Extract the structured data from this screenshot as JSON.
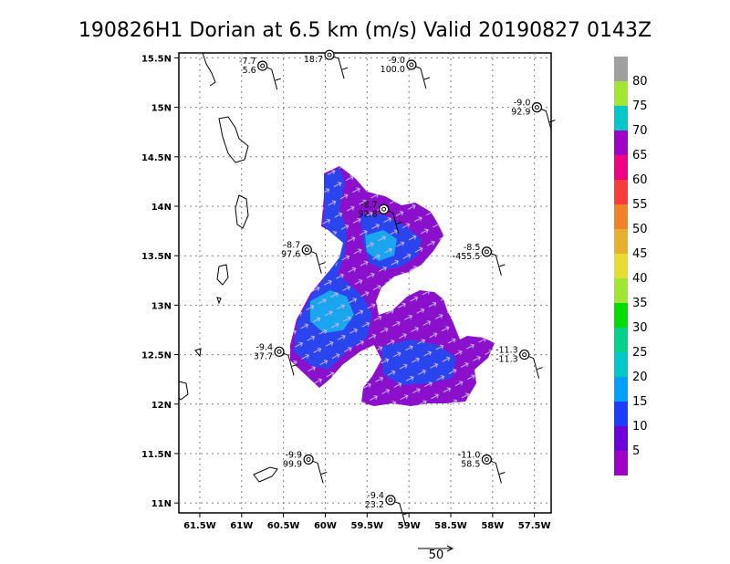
{
  "chart_data": {
    "type": "heatmap",
    "title": "190826H1 Dorian at 6.5 km (m/s) Valid 20190827 0143Z",
    "xlim": [
      -61.75,
      -57.3
    ],
    "ylim": [
      10.9,
      15.55
    ],
    "x_ticks": [
      {
        "value": -61.5,
        "label": "61.5W"
      },
      {
        "value": -61.0,
        "label": "61W"
      },
      {
        "value": -60.5,
        "label": "60.5W"
      },
      {
        "value": -60.0,
        "label": "60W"
      },
      {
        "value": -59.5,
        "label": "59.5W"
      },
      {
        "value": -59.0,
        "label": "59W"
      },
      {
        "value": -58.5,
        "label": "58.5W"
      },
      {
        "value": -58.0,
        "label": "58W"
      },
      {
        "value": -57.5,
        "label": "57.5W"
      }
    ],
    "y_ticks": [
      {
        "value": 15.5,
        "label": "15.5N"
      },
      {
        "value": 15.0,
        "label": "15N"
      },
      {
        "value": 14.5,
        "label": "14.5N"
      },
      {
        "value": 14.0,
        "label": "14N"
      },
      {
        "value": 13.5,
        "label": "13.5N"
      },
      {
        "value": 13.0,
        "label": "13N"
      },
      {
        "value": 12.5,
        "label": "12.5N"
      },
      {
        "value": 12.0,
        "label": "12N"
      },
      {
        "value": 11.5,
        "label": "11.5N"
      },
      {
        "value": 11.0,
        "label": "11N"
      }
    ],
    "grid": true,
    "colorbar": {
      "labels": [
        "5",
        "10",
        "15",
        "20",
        "25",
        "30",
        "35",
        "40",
        "45",
        "50",
        "55",
        "60",
        "65",
        "70",
        "75",
        "80"
      ],
      "colors": [
        "#a000c8",
        "#6e00dc",
        "#1e3cff",
        "#00a0ff",
        "#00c8c8",
        "#00d28c",
        "#00dc00",
        "#a0e632",
        "#e6dc32",
        "#e6af2d",
        "#f08228",
        "#fa3c3c",
        "#f00082",
        "#a000c8",
        "#00c8c8",
        "#a0e632",
        "#a0a0a0"
      ]
    },
    "stations": [
      {
        "lon": -60.75,
        "lat": 15.42,
        "top": "-7.7",
        "bottom": "5.6"
      },
      {
        "lon": -59.95,
        "lat": 15.53,
        "top": "",
        "bottom": "18.7"
      },
      {
        "lon": -58.97,
        "lat": 15.43,
        "top": "-9.0",
        "bottom": "100.0"
      },
      {
        "lon": -57.47,
        "lat": 15.0,
        "top": "-9.0",
        "bottom": "92.9"
      },
      {
        "lon": -59.3,
        "lat": 13.97,
        "top": "-8.7",
        "bottom": "92.8"
      },
      {
        "lon": -60.22,
        "lat": 13.56,
        "top": "-8.7",
        "bottom": "97.6"
      },
      {
        "lon": -58.07,
        "lat": 13.54,
        "top": "-8.5",
        "bottom": "-455.5"
      },
      {
        "lon": -57.62,
        "lat": 12.5,
        "top": "-11.3",
        "bottom": "-11.3"
      },
      {
        "lon": -60.55,
        "lat": 12.53,
        "top": "-9.4",
        "bottom": "37.7"
      },
      {
        "lon": -60.2,
        "lat": 11.44,
        "top": "-9.9",
        "bottom": "99.9"
      },
      {
        "lon": -58.07,
        "lat": 11.44,
        "top": "-11.0",
        "bottom": "58.5"
      },
      {
        "lon": -59.22,
        "lat": 11.03,
        "top": "-9.4",
        "bottom": "23.2"
      }
    ],
    "reference_vector": {
      "label": "50"
    }
  }
}
